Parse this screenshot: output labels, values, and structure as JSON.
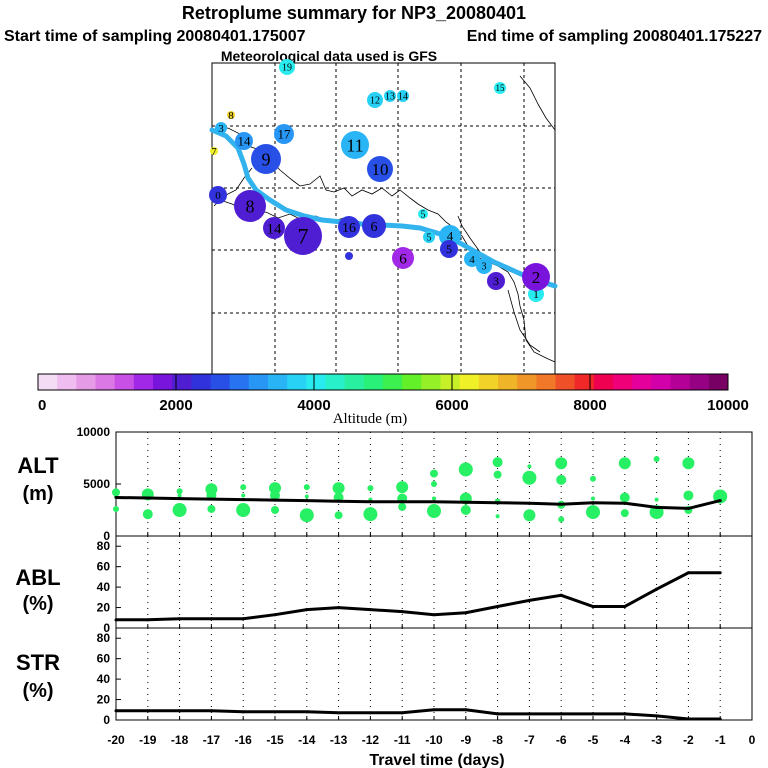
{
  "header": {
    "title": "Retroplume summary for NP3_20080401",
    "start_label": "Start time of sampling 20080401.175007",
    "end_label": "End time of sampling 20080401.175227",
    "met_label": "Meteorological data used is GFS"
  },
  "colorbar": {
    "title": "Altitude (m)",
    "ticks": [
      "0",
      "2000",
      "4000",
      "6000",
      "8000",
      "10000"
    ],
    "min": 0,
    "max": 10000,
    "colors": [
      "#f5dcf5",
      "#efbdf0",
      "#e69be6",
      "#dc78e6",
      "#c850e6",
      "#a028e6",
      "#7814dc",
      "#501ed2",
      "#3232dc",
      "#2850e6",
      "#2874f0",
      "#2896f5",
      "#28b4f5",
      "#28d2f5",
      "#28ebf0",
      "#28f0c8",
      "#28f0a0",
      "#28f078",
      "#3cf050",
      "#64f028",
      "#96f028",
      "#c8f028",
      "#f0f028",
      "#f0d228",
      "#f0b428",
      "#f09628",
      "#f07828",
      "#f05028",
      "#f02828",
      "#f00050",
      "#f00078",
      "#e6009b",
      "#d200aa",
      "#b40096",
      "#960082",
      "#780064"
    ]
  },
  "map": {
    "trajectory_color": "#33b3ee",
    "plumes": [
      {
        "label": "1",
        "color": "#28ebf0"
      },
      {
        "label": "2",
        "color": "#7814dc"
      },
      {
        "label": "3",
        "color": "#501ed2"
      },
      {
        "label": "3",
        "color": "#28b4f5"
      },
      {
        "label": "4",
        "color": "#28b4f5"
      },
      {
        "label": "4",
        "color": "#28b4f5"
      },
      {
        "label": "5",
        "color": "#3232dc"
      },
      {
        "label": "6",
        "color": "#a028e6"
      },
      {
        "label": "5",
        "color": "#28d2f5"
      },
      {
        "label": "5",
        "color": "#28ebf0"
      },
      {
        "label": "11",
        "color": "#28b4f5"
      },
      {
        "label": "10",
        "color": "#2850e6"
      },
      {
        "label": "12",
        "color": "#28d2f5"
      },
      {
        "label": "13",
        "color": "#28d2f5"
      },
      {
        "label": "14",
        "color": "#28d2f5"
      },
      {
        "label": "15",
        "color": "#28ebf0"
      },
      {
        "label": "7",
        "color": "#501ed2"
      },
      {
        "label": "8",
        "color": "#501ed2"
      },
      {
        "label": "14",
        "color": "#501ed2"
      },
      {
        "label": "9",
        "color": "#2850e6"
      },
      {
        "label": "17",
        "color": "#2896f5"
      },
      {
        "label": "19",
        "color": "#28ebf0"
      },
      {
        "label": "16",
        "color": "#3232dc"
      },
      {
        "label": "6",
        "color": "#3232dc"
      },
      {
        "label": "8",
        "color": "#f0d228"
      },
      {
        "label": "7",
        "color": "#f0f028"
      },
      {
        "label": "3",
        "color": "#28b4f5"
      },
      {
        "label": "14",
        "color": "#2896f5"
      },
      {
        "label": "0",
        "color": "#3232dc"
      }
    ]
  },
  "chart_data": [
    {
      "type": "line",
      "panel": "ALT",
      "ylabel": "ALT (m)",
      "x": [
        -20,
        -19,
        -18,
        -17,
        -16,
        -15,
        -14,
        -13,
        -12,
        -11,
        -10,
        -9,
        -8,
        -7,
        -6,
        -5,
        -4,
        -3,
        -2,
        -1
      ],
      "ylim": [
        0,
        10000
      ],
      "yticks": [
        "10000",
        "5000",
        "0"
      ],
      "series": [
        {
          "name": "mean altitude",
          "values": [
            3700,
            3650,
            3600,
            3550,
            3500,
            3450,
            3400,
            3350,
            3300,
            3300,
            3300,
            3250,
            3200,
            3150,
            3050,
            3200,
            3150,
            2750,
            2650,
            3400
          ]
        }
      ],
      "scatter_color": "#28f064",
      "scatter": [
        [
          -20,
          3800
        ],
        [
          -20,
          2600
        ],
        [
          -20,
          4200
        ],
        [
          -19,
          2100
        ],
        [
          -19,
          4000
        ],
        [
          -18,
          2500
        ],
        [
          -18,
          3900
        ],
        [
          -18,
          4300
        ],
        [
          -17,
          2600
        ],
        [
          -17,
          3900
        ],
        [
          -17,
          4500
        ],
        [
          -16,
          2500
        ],
        [
          -16,
          3900
        ],
        [
          -16,
          4700
        ],
        [
          -15,
          2500
        ],
        [
          -15,
          3900
        ],
        [
          -15,
          4600
        ],
        [
          -14,
          2000
        ],
        [
          -14,
          3800
        ],
        [
          -14,
          4700
        ],
        [
          -13,
          2000
        ],
        [
          -13,
          3700
        ],
        [
          -13,
          4600
        ],
        [
          -12,
          2100
        ],
        [
          -12,
          3500
        ],
        [
          -12,
          4600
        ],
        [
          -11,
          2800
        ],
        [
          -11,
          3600
        ],
        [
          -11,
          4700
        ],
        [
          -10,
          2400
        ],
        [
          -10,
          3600
        ],
        [
          -10,
          5000
        ],
        [
          -10,
          6000
        ],
        [
          -9,
          2500
        ],
        [
          -9,
          3600
        ],
        [
          -9,
          6400
        ],
        [
          -8,
          1900
        ],
        [
          -8,
          3300
        ],
        [
          -8,
          5900
        ],
        [
          -8,
          7100
        ],
        [
          -7,
          2000
        ],
        [
          -7,
          5600
        ],
        [
          -7,
          6700
        ],
        [
          -6,
          1600
        ],
        [
          -6,
          3000
        ],
        [
          -6,
          5400
        ],
        [
          -6,
          7000
        ],
        [
          -5,
          2300
        ],
        [
          -5,
          3600
        ],
        [
          -5,
          5500
        ],
        [
          -4,
          2200
        ],
        [
          -4,
          3700
        ],
        [
          -4,
          7000
        ],
        [
          -3,
          2300
        ],
        [
          -3,
          3500
        ],
        [
          -3,
          7400
        ],
        [
          -2,
          2500
        ],
        [
          -2,
          3900
        ],
        [
          -2,
          7000
        ],
        [
          -1,
          3800
        ],
        [
          -1,
          3300
        ]
      ]
    },
    {
      "type": "line",
      "panel": "ABL",
      "ylabel": "ABL (%)",
      "x": [
        -20,
        -19,
        -18,
        -17,
        -16,
        -15,
        -14,
        -13,
        -12,
        -11,
        -10,
        -9,
        -8,
        -7,
        -6,
        -5,
        -4,
        -3,
        -2,
        -1
      ],
      "ylim": [
        0,
        90
      ],
      "yticks": [
        "80",
        "60",
        "40",
        "20",
        "0"
      ],
      "series": [
        {
          "name": "ABL fraction",
          "values": [
            8,
            8,
            9,
            9,
            9,
            13,
            18,
            20,
            18,
            16,
            13,
            15,
            21,
            27,
            32,
            21,
            21,
            38,
            54,
            54
          ]
        }
      ]
    },
    {
      "type": "line",
      "panel": "STR",
      "ylabel": "STR (%)",
      "x": [
        -20,
        -19,
        -18,
        -17,
        -16,
        -15,
        -14,
        -13,
        -12,
        -11,
        -10,
        -9,
        -8,
        -7,
        -6,
        -5,
        -4,
        -3,
        -2,
        -1
      ],
      "ylim": [
        0,
        90
      ],
      "yticks": [
        "80",
        "60",
        "40",
        "20",
        "0"
      ],
      "series": [
        {
          "name": "stratospheric fraction",
          "values": [
            9,
            9,
            9,
            9,
            8,
            8,
            8,
            7,
            7,
            7,
            10,
            10,
            6,
            6,
            6,
            6,
            6,
            4,
            1,
            1
          ]
        }
      ]
    }
  ],
  "xaxis": {
    "label": "Travel time (days)",
    "ticks": [
      "-20",
      "-19",
      "-18",
      "-17",
      "-16",
      "-15",
      "-14",
      "-13",
      "-12",
      "-11",
      "-10",
      "-9",
      "-8",
      "-7",
      "-6",
      "-5",
      "-4",
      "-3",
      "-2",
      "-1",
      "0"
    ],
    "range": [
      -20,
      0
    ]
  }
}
